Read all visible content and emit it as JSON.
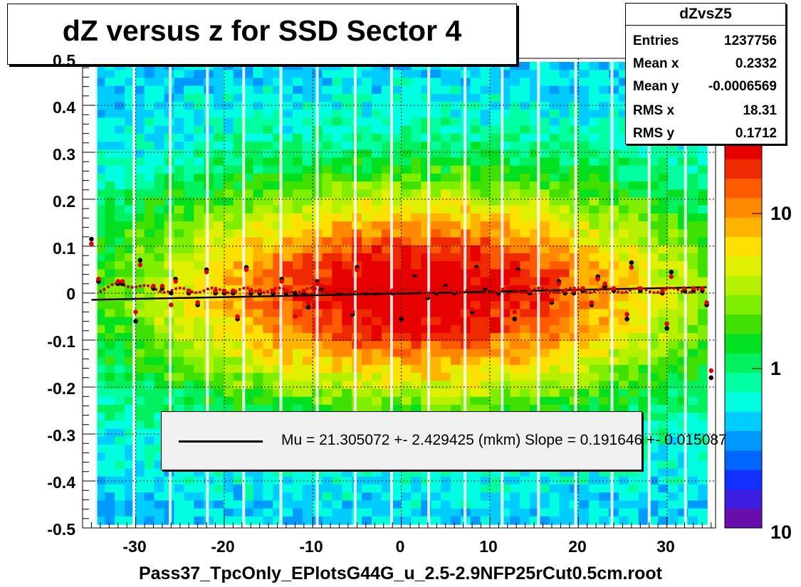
{
  "title": "dZ versus  z for SSD Sector 4",
  "stats": {
    "name": "dZvsZ5",
    "rows": [
      {
        "label": "Entries",
        "value": "1237756"
      },
      {
        "label": "Mean x",
        "value": "0.2332"
      },
      {
        "label": "Mean y",
        "value": "-0.0006569"
      },
      {
        "label": "RMS x",
        "value": "18.31"
      },
      {
        "label": "RMS y",
        "value": "0.1712"
      }
    ]
  },
  "legend_text": "Mu = 21.305072 +- 2.429425 (mkm) Slope = 0.191646 +- 0.015087",
  "colorbar_ticks": [
    "10",
    "1",
    "10"
  ],
  "chart_data": {
    "type": "heatmap",
    "title": "dZ versus  z for SSD Sector 4",
    "xlabel": "Pass37_TpcOnly_EPlotsG44G_u_2.5-2.9NFP25rCut0.5cm.root",
    "ylabel": "",
    "xlim": [
      -36,
      35.5
    ],
    "ylim": [
      -0.5,
      0.5
    ],
    "xticks": [
      "-30",
      "-20",
      "-10",
      "0",
      "10",
      "20",
      "30"
    ],
    "yticks": [
      "-0.5",
      "-0.4",
      "-0.3",
      "-0.2",
      "-0.1",
      "0",
      "0.1",
      "0.2",
      "0.3",
      "0.4",
      "0.5"
    ],
    "log_z": true,
    "grid": true,
    "fit_line": {
      "intercept": 0.0,
      "slope": 0.00019
    },
    "series": [
      {
        "color": "#000000",
        "x": [
          -35,
          -34.2,
          -32,
          -31.5,
          -30,
          -29.5,
          -28,
          -27,
          -26,
          -25.5,
          -24,
          -23,
          -22,
          -21,
          -20,
          -19,
          -18.5,
          -17.5,
          -17,
          -16,
          -14.5,
          -13.5,
          -13,
          -12,
          -11,
          -10.5,
          -9.5,
          -9,
          -7,
          -5.5,
          -5,
          -4,
          -3,
          -1,
          0,
          1.5,
          3,
          4,
          5,
          6,
          8,
          8.5,
          9.5,
          11,
          12,
          12.8,
          13.2,
          14.5,
          17,
          17.8,
          18.5,
          19.5,
          20.5,
          21.5,
          22.2,
          23,
          24,
          25.5,
          26,
          27,
          29.5,
          30,
          30.5,
          32,
          33,
          34,
          34.5,
          35
        ],
        "values": [
          0.115,
          0.025,
          0.02,
          0.02,
          -0.06,
          0.07,
          0.01,
          0.01,
          0.0,
          0.03,
          0.0,
          -0.025,
          0.05,
          0.0,
          0.0,
          0.0,
          -0.055,
          0.055,
          0.0,
          0.0,
          0.0,
          0.03,
          0.0,
          0.0,
          0.0,
          -0.03,
          0.025,
          0.01,
          0.0,
          -0.045,
          0.055,
          0.0,
          0.0,
          0.0,
          -0.055,
          0.035,
          -0.01,
          0.0,
          0.015,
          0.0,
          -0.04,
          0.055,
          0.01,
          0.0,
          0.005,
          -0.055,
          0.05,
          0.0,
          -0.02,
          0.025,
          0.0,
          0.0,
          0.005,
          -0.025,
          0.035,
          0.015,
          0.005,
          -0.055,
          0.065,
          0.005,
          0.0,
          -0.075,
          0.045,
          0.005,
          0.005,
          0.005,
          -0.025,
          -0.18
        ]
      },
      {
        "color": "#e00000",
        "x": [
          -35,
          -34.2,
          -32,
          -31.5,
          -30,
          -29.5,
          -28,
          -27,
          -26,
          -25.5,
          -24,
          -23,
          -22,
          -21,
          -20,
          -19,
          -18.5,
          -17.5,
          -17,
          -16,
          -14.5,
          -13.5,
          -13,
          -12,
          -11,
          -10.5,
          -9.5,
          -9,
          -7,
          -5.5,
          -5,
          -4,
          -3,
          -1,
          0,
          1.5,
          3,
          4,
          5,
          6,
          8,
          8.5,
          9.5,
          11,
          12,
          12.8,
          13.2,
          14.5,
          17,
          17.8,
          18.5,
          19.5,
          20.5,
          21.5,
          22.2,
          23,
          24,
          25.5,
          26,
          27,
          29.5,
          30,
          30.5,
          32,
          33,
          34,
          34.5,
          35
        ],
        "values": [
          0.105,
          0.03,
          0.025,
          0.025,
          -0.04,
          0.06,
          0.015,
          0.015,
          -0.025,
          0.025,
          0.005,
          -0.02,
          0.045,
          0.005,
          0.005,
          0.005,
          -0.05,
          0.05,
          0.005,
          0.005,
          0.005,
          0.025,
          0.005,
          -0.05,
          0.005,
          -0.02,
          0.02,
          0.015,
          0.005,
          -0.04,
          0.05,
          0.005,
          0.005,
          0.005,
          -0.045,
          0.03,
          -0.005,
          0.005,
          0.01,
          0.005,
          -0.035,
          0.05,
          0.015,
          0.005,
          0.01,
          -0.04,
          0.045,
          0.005,
          -0.015,
          0.02,
          0.005,
          0.005,
          0.01,
          -0.02,
          0.03,
          0.02,
          0.01,
          -0.045,
          0.055,
          0.01,
          0.005,
          -0.065,
          0.035,
          0.01,
          0.01,
          0.01,
          -0.02,
          -0.165
        ]
      }
    ]
  }
}
